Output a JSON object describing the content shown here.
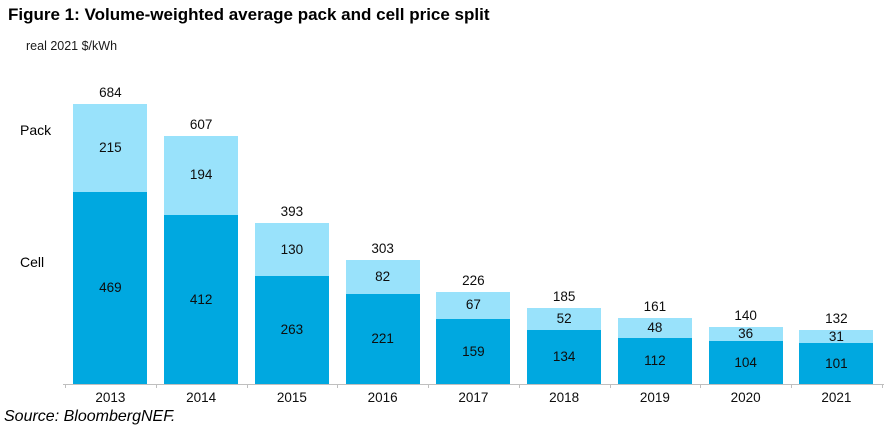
{
  "figure": {
    "title": "Figure 1: Volume-weighted average pack and cell price split",
    "unit_label": "real 2021 $/kWh",
    "source": "Source: BloombergNEF."
  },
  "series_labels": {
    "pack": "Pack",
    "cell": "Cell"
  },
  "colors": {
    "pack_fill": "#99E2FB",
    "cell_fill": "#00A8E0",
    "axis_line": "#BFBFBF",
    "label_text": "#0D0D0D"
  },
  "chart_data": {
    "type": "bar",
    "stacked": true,
    "title": "Figure 1: Volume-weighted average pack and cell price split",
    "ylabel": "real 2021 $/kWh",
    "xlabel": "",
    "categories": [
      "2013",
      "2014",
      "2015",
      "2016",
      "2017",
      "2018",
      "2019",
      "2020",
      "2021"
    ],
    "series": [
      {
        "name": "Cell",
        "color": "#00A8E0",
        "values": [
          469,
          412,
          263,
          221,
          159,
          134,
          112,
          104,
          101
        ]
      },
      {
        "name": "Pack",
        "color": "#99E2FB",
        "values": [
          215,
          194,
          130,
          82,
          67,
          52,
          48,
          36,
          31
        ]
      }
    ],
    "totals": [
      684,
      607,
      393,
      303,
      226,
      185,
      161,
      140,
      132
    ],
    "ylim": [
      0,
      700
    ],
    "grid": false,
    "data_labels": true,
    "legend_entries": [
      "Pack",
      "Cell"
    ],
    "legend_position": "left-of-plot"
  }
}
